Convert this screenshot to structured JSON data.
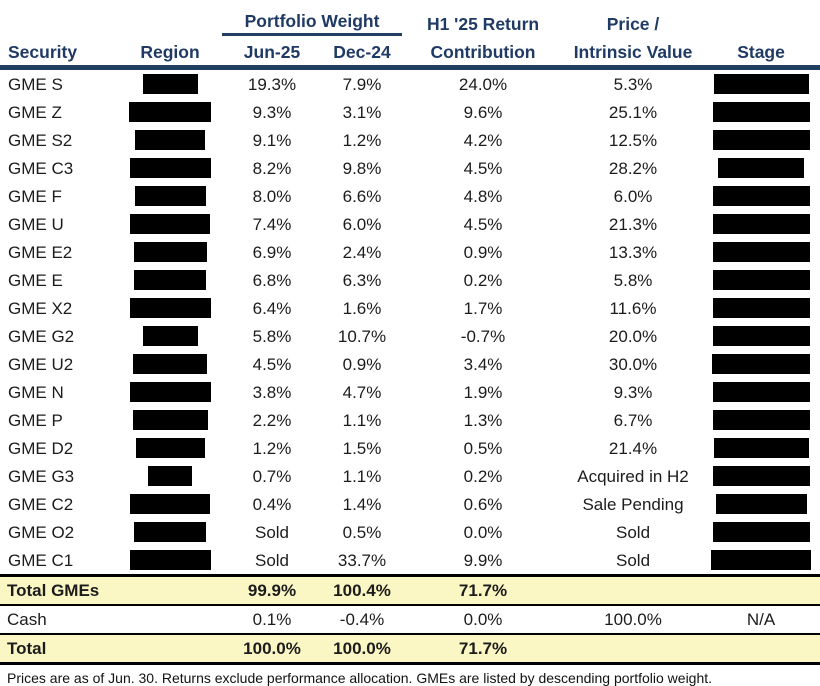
{
  "header": {
    "security": "Security",
    "region": "Region",
    "portfolio_weight": "Portfolio Weight",
    "jun25": "Jun-25",
    "dec24": "Dec-24",
    "return_line1": "H1 '25 Return",
    "return_line2": "Contribution",
    "price_line1": "Price /",
    "price_line2": "Intrinsic Value",
    "stage": "Stage"
  },
  "colors": {
    "header_text": "#1f3a64",
    "rule": "#21405f",
    "total_row_bg": "#faf7c5",
    "redaction": "#000000"
  },
  "rows": [
    {
      "security": "GME S",
      "jun25": "19.3%",
      "dec24": "7.9%",
      "contribution": "24.0%",
      "piv": "5.3%",
      "region_w": 55,
      "stage_w": 95
    },
    {
      "security": "GME Z",
      "jun25": "9.3%",
      "dec24": "3.1%",
      "contribution": "9.6%",
      "piv": "25.1%",
      "region_w": 82,
      "stage_w": 97
    },
    {
      "security": "GME S2",
      "jun25": "9.1%",
      "dec24": "1.2%",
      "contribution": "4.2%",
      "piv": "12.5%",
      "region_w": 70,
      "stage_w": 97
    },
    {
      "security": "GME C3",
      "jun25": "8.2%",
      "dec24": "9.8%",
      "contribution": "4.5%",
      "piv": "28.2%",
      "region_w": 81,
      "stage_w": 86
    },
    {
      "security": "GME F",
      "jun25": "8.0%",
      "dec24": "6.6%",
      "contribution": "4.8%",
      "piv": "6.0%",
      "region_w": 71,
      "stage_w": 97
    },
    {
      "security": "GME U",
      "jun25": "7.4%",
      "dec24": "6.0%",
      "contribution": "4.5%",
      "piv": "21.3%",
      "region_w": 80,
      "stage_w": 97
    },
    {
      "security": "GME E2",
      "jun25": "6.9%",
      "dec24": "2.4%",
      "contribution": "0.9%",
      "piv": "13.3%",
      "region_w": 73,
      "stage_w": 97
    },
    {
      "security": "GME E",
      "jun25": "6.8%",
      "dec24": "6.3%",
      "contribution": "0.2%",
      "piv": "5.8%",
      "region_w": 72,
      "stage_w": 97
    },
    {
      "security": "GME X2",
      "jun25": "6.4%",
      "dec24": "1.6%",
      "contribution": "1.7%",
      "piv": "11.6%",
      "region_w": 81,
      "stage_w": 97
    },
    {
      "security": "GME G2",
      "jun25": "5.8%",
      "dec24": "10.7%",
      "contribution": "-0.7%",
      "piv": "20.0%",
      "region_w": 55,
      "stage_w": 97
    },
    {
      "security": "GME U2",
      "jun25": "4.5%",
      "dec24": "0.9%",
      "contribution": "3.4%",
      "piv": "30.0%",
      "region_w": 74,
      "stage_w": 98
    },
    {
      "security": "GME N",
      "jun25": "3.8%",
      "dec24": "4.7%",
      "contribution": "1.9%",
      "piv": "9.3%",
      "region_w": 81,
      "stage_w": 97
    },
    {
      "security": "GME P",
      "jun25": "2.2%",
      "dec24": "1.1%",
      "contribution": "1.3%",
      "piv": "6.7%",
      "region_w": 75,
      "stage_w": 97
    },
    {
      "security": "GME D2",
      "jun25": "1.2%",
      "dec24": "1.5%",
      "contribution": "0.5%",
      "piv": "21.4%",
      "region_w": 69,
      "stage_w": 95
    },
    {
      "security": "GME G3",
      "jun25": "0.7%",
      "dec24": "1.1%",
      "contribution": "0.2%",
      "piv": "Acquired in H2",
      "region_w": 44,
      "stage_w": 97
    },
    {
      "security": "GME C2",
      "jun25": "0.4%",
      "dec24": "1.4%",
      "contribution": "0.6%",
      "piv": "Sale Pending",
      "region_w": 80,
      "stage_w": 91
    },
    {
      "security": "GME O2",
      "jun25": "Sold",
      "dec24": "0.5%",
      "contribution": "0.0%",
      "piv": "Sold",
      "region_w": 72,
      "stage_w": 97
    },
    {
      "security": "GME C1",
      "jun25": "Sold",
      "dec24": "33.7%",
      "contribution": "9.9%",
      "piv": "Sold",
      "region_w": 81,
      "stage_w": 100
    }
  ],
  "totals": [
    {
      "name": "total-gmes-row",
      "label": "Total GMEs",
      "jun25": "99.9%",
      "dec24": "100.4%",
      "contribution": "71.7%",
      "piv": "",
      "stage": "",
      "emphasis": true
    },
    {
      "name": "cash-row",
      "label": "Cash",
      "jun25": "0.1%",
      "dec24": "-0.4%",
      "contribution": "0.0%",
      "piv": "100.0%",
      "stage": "N/A",
      "emphasis": false
    },
    {
      "name": "total-row",
      "label": "Total",
      "jun25": "100.0%",
      "dec24": "100.0%",
      "contribution": "71.7%",
      "piv": "",
      "stage": "",
      "emphasis": true
    }
  ],
  "footnote": "Prices are as of Jun. 30. Returns exclude performance allocation. GMEs are listed by descending portfolio weight."
}
